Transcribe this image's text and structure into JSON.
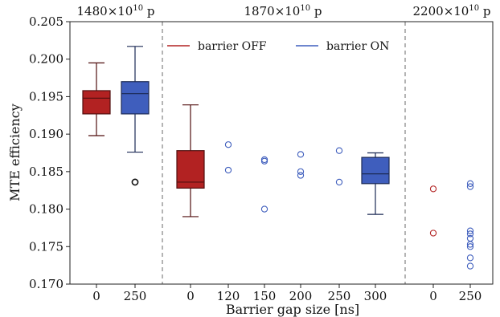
{
  "chart_data": {
    "type": "box",
    "ylabel": "MTE efficiency",
    "xlabel": "Barrier gap size [ns]",
    "ylim": [
      0.17,
      0.205
    ],
    "yticks": [
      "0.170",
      "0.175",
      "0.180",
      "0.185",
      "0.190",
      "0.195",
      "0.200",
      "0.205"
    ],
    "grid": false,
    "legend_position": "top-center",
    "group_labels": [
      {
        "text": "1480×10",
        "sup": "10",
        "unit": " p"
      },
      {
        "text": "1870×10",
        "sup": "10",
        "unit": " p"
      },
      {
        "text": "2200×10",
        "sup": "10",
        "unit": " p"
      }
    ],
    "legend": [
      {
        "name": "barrier OFF",
        "color": "#b22222"
      },
      {
        "name": "barrier ON",
        "color": "#3f5ebd"
      }
    ],
    "categories": [
      {
        "label": "0",
        "series": "barrier OFF",
        "color": "#b22222",
        "box": {
          "min": 0.1898,
          "q1": 0.1927,
          "median": 0.1948,
          "q3": 0.1958,
          "max": 0.1995
        },
        "fliers": []
      },
      {
        "label": "250",
        "series": "barrier ON",
        "color": "#3f5ebd",
        "box": {
          "min": 0.1876,
          "q1": 0.1927,
          "median": 0.1954,
          "q3": 0.197,
          "max": 0.2017
        },
        "fliers": [
          {
            "y": 0.1836,
            "color": "#111111"
          }
        ]
      },
      {
        "label": "0",
        "series": "barrier OFF",
        "color": "#b22222",
        "box": {
          "min": 0.179,
          "q1": 0.1828,
          "median": 0.1836,
          "q3": 0.1878,
          "max": 0.1939
        },
        "fliers": []
      },
      {
        "label": "120",
        "series": "barrier ON",
        "color": "#3f5ebd",
        "box": null,
        "points": [
          0.1886,
          0.1852
        ]
      },
      {
        "label": "150",
        "series": "barrier ON",
        "color": "#3f5ebd",
        "box": null,
        "points": [
          0.1866,
          0.1864,
          0.18
        ]
      },
      {
        "label": "200",
        "series": "barrier ON",
        "color": "#3f5ebd",
        "box": null,
        "points": [
          0.1873,
          0.185,
          0.1845
        ]
      },
      {
        "label": "250",
        "series": "barrier ON",
        "color": "#3f5ebd",
        "box": null,
        "points": [
          0.1878,
          0.1836
        ]
      },
      {
        "label": "300",
        "series": "barrier ON",
        "color": "#3f5ebd",
        "box": {
          "min": 0.1793,
          "q1": 0.1834,
          "median": 0.1847,
          "q3": 0.1869,
          "max": 0.1875
        },
        "fliers": []
      },
      {
        "label": "0",
        "series": "barrier OFF",
        "color": "#b22222",
        "box": null,
        "points": [
          0.1827,
          0.1768
        ]
      },
      {
        "label": "250",
        "series": "barrier ON",
        "color": "#3f5ebd",
        "box": null,
        "points": [
          0.1834,
          0.183,
          0.1771,
          0.1767,
          0.1761,
          0.1753,
          0.175,
          0.1735,
          0.1724
        ]
      }
    ]
  }
}
